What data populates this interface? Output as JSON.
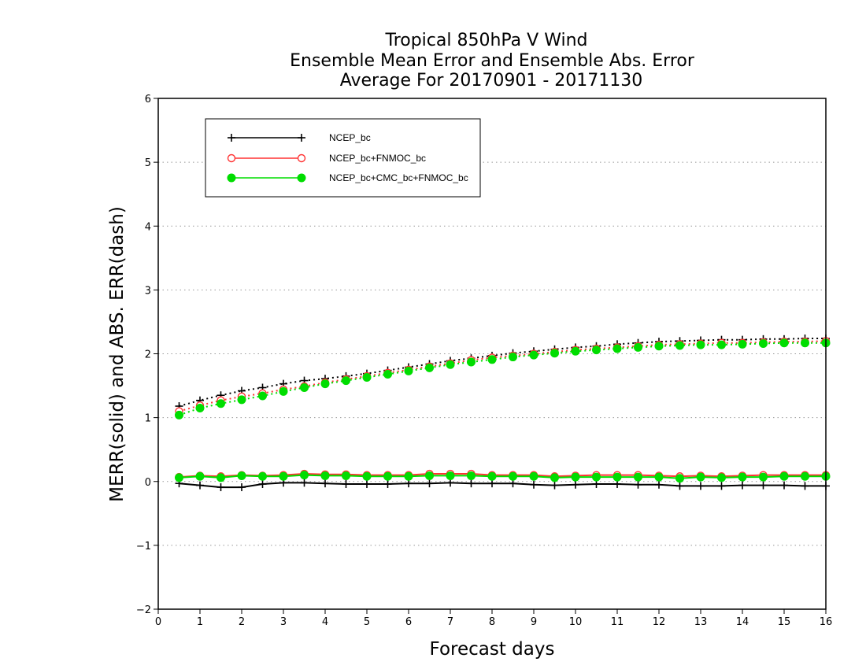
{
  "chart_data": {
    "type": "line",
    "title_lines": [
      "Tropical 850hPa V Wind",
      "Ensemble Mean Error and Ensemble Abs. Error",
      "Average For 20170901 - 20171130"
    ],
    "xlabel": "Forecast days",
    "ylabel": "MERR(solid) and ABS. ERR(dash)",
    "xlim": [
      0,
      16
    ],
    "ylim": [
      -2,
      6
    ],
    "x_ticks": [
      "0",
      "1",
      "2",
      "3",
      "4",
      "5",
      "6",
      "7",
      "8",
      "9",
      "10",
      "11",
      "12",
      "13",
      "14",
      "15",
      "16"
    ],
    "y_ticks": [
      "6",
      "5",
      "4",
      "3",
      "2",
      "1",
      "0",
      "−1",
      "−2"
    ],
    "grid": "horizontal dotted",
    "legend_position": "top-left",
    "x": [
      0.5,
      1,
      1.5,
      2,
      2.5,
      3,
      3.5,
      4,
      4.5,
      5,
      5.5,
      6,
      6.5,
      7,
      7.5,
      8,
      8.5,
      9,
      9.5,
      10,
      10.5,
      11,
      11.5,
      12,
      12.5,
      13,
      13.5,
      14,
      14.5,
      15,
      15.5,
      16
    ],
    "series": [
      {
        "name": "NCEP_bc",
        "color": "#000000",
        "marker": "plus",
        "merr": [
          -0.03,
          -0.06,
          -0.09,
          -0.09,
          -0.04,
          -0.02,
          -0.02,
          -0.03,
          -0.04,
          -0.04,
          -0.04,
          -0.03,
          -0.03,
          -0.02,
          -0.03,
          -0.03,
          -0.03,
          -0.05,
          -0.06,
          -0.05,
          -0.04,
          -0.04,
          -0.05,
          -0.05,
          -0.07,
          -0.07,
          -0.07,
          -0.06,
          -0.06,
          -0.06,
          -0.07,
          -0.07
        ],
        "abs_err": [
          1.18,
          1.27,
          1.35,
          1.42,
          1.47,
          1.53,
          1.58,
          1.61,
          1.65,
          1.69,
          1.74,
          1.79,
          1.84,
          1.89,
          1.93,
          1.97,
          2.01,
          2.04,
          2.07,
          2.1,
          2.12,
          2.15,
          2.17,
          2.19,
          2.2,
          2.21,
          2.22,
          2.22,
          2.23,
          2.23,
          2.24,
          2.24
        ]
      },
      {
        "name": "NCEP_bc+FNMOC_bc",
        "color": "#ff3333",
        "marker": "open-circle",
        "merr": [
          0.07,
          0.09,
          0.08,
          0.1,
          0.09,
          0.1,
          0.12,
          0.11,
          0.11,
          0.1,
          0.1,
          0.1,
          0.12,
          0.12,
          0.12,
          0.1,
          0.1,
          0.1,
          0.08,
          0.09,
          0.1,
          0.1,
          0.1,
          0.09,
          0.08,
          0.09,
          0.08,
          0.09,
          0.1,
          0.1,
          0.1,
          0.1
        ],
        "abs_err": [
          1.1,
          1.19,
          1.27,
          1.33,
          1.38,
          1.44,
          1.49,
          1.55,
          1.6,
          1.65,
          1.7,
          1.75,
          1.8,
          1.85,
          1.9,
          1.94,
          1.97,
          2.0,
          2.03,
          2.06,
          2.08,
          2.1,
          2.12,
          2.14,
          2.15,
          2.16,
          2.17,
          2.17,
          2.18,
          2.19,
          2.19,
          2.2
        ]
      },
      {
        "name": "NCEP_bc+CMC_bc+FNMOC_bc",
        "color": "#00dd00",
        "marker": "filled-circle",
        "merr": [
          0.06,
          0.08,
          0.06,
          0.09,
          0.08,
          0.08,
          0.1,
          0.09,
          0.09,
          0.08,
          0.08,
          0.08,
          0.09,
          0.09,
          0.09,
          0.08,
          0.08,
          0.08,
          0.06,
          0.07,
          0.07,
          0.07,
          0.07,
          0.07,
          0.05,
          0.07,
          0.06,
          0.07,
          0.07,
          0.08,
          0.08,
          0.08
        ],
        "abs_err": [
          1.04,
          1.15,
          1.22,
          1.28,
          1.34,
          1.41,
          1.47,
          1.53,
          1.58,
          1.63,
          1.68,
          1.73,
          1.78,
          1.83,
          1.87,
          1.91,
          1.95,
          1.98,
          2.01,
          2.04,
          2.06,
          2.08,
          2.1,
          2.12,
          2.13,
          2.14,
          2.14,
          2.15,
          2.16,
          2.17,
          2.17,
          2.17
        ]
      }
    ]
  }
}
